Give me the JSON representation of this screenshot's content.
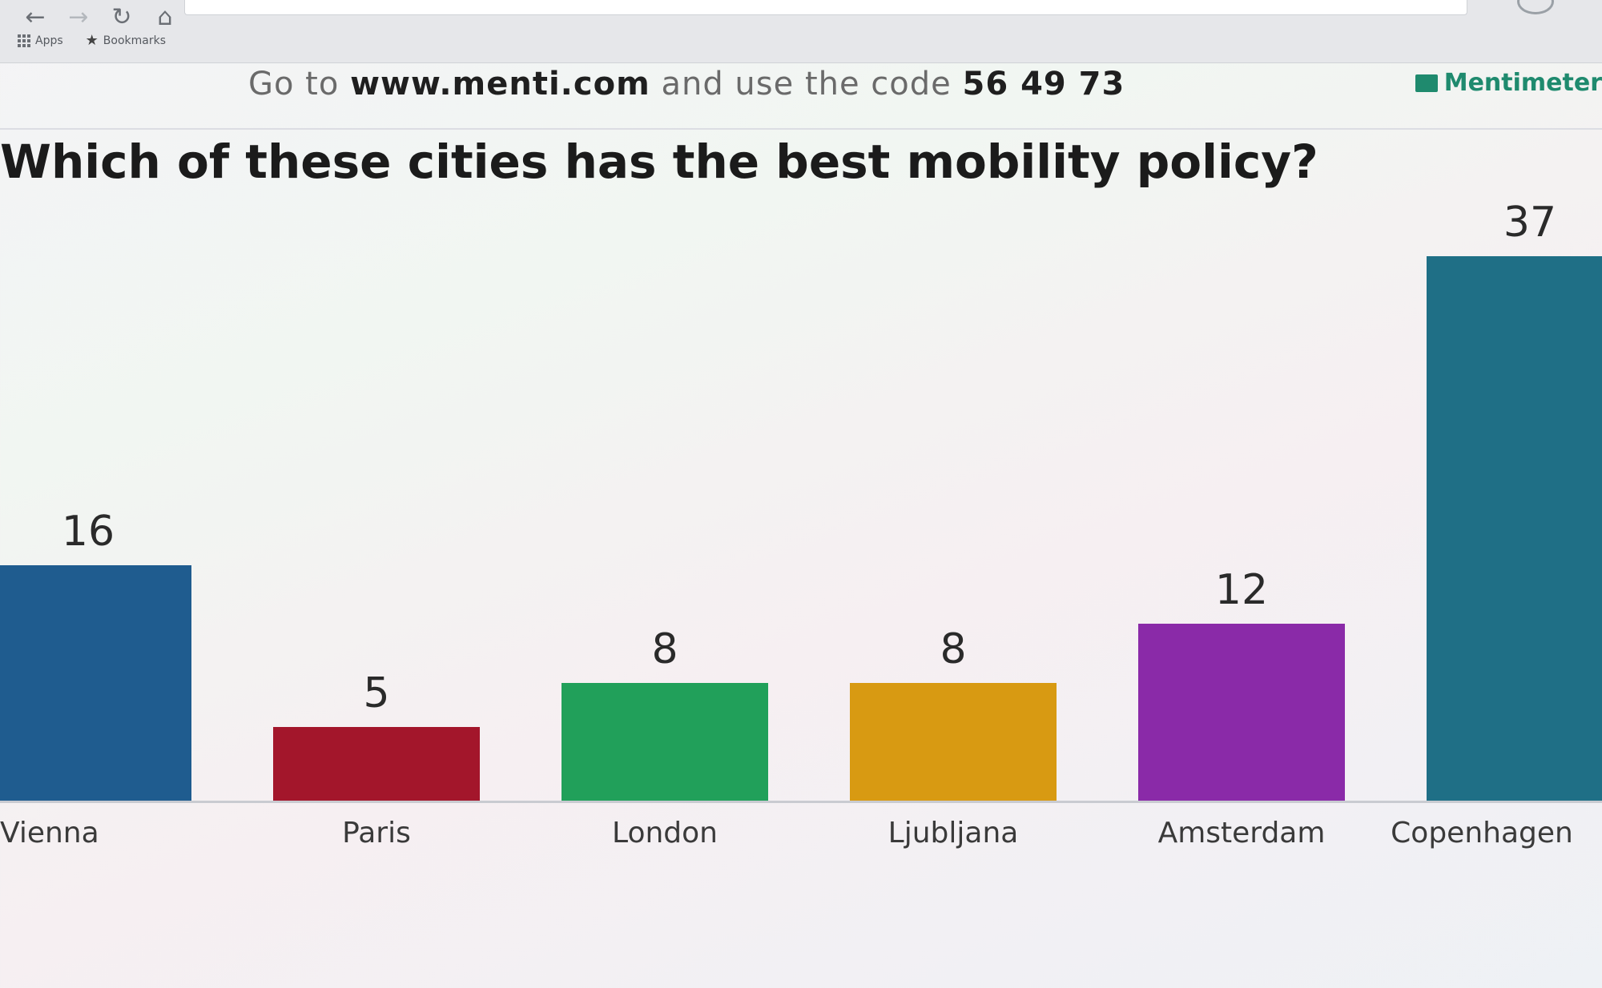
{
  "browser": {
    "nav_back": "←",
    "nav_forward": "→",
    "nav_reload": "↻",
    "nav_home": "⌂",
    "bookmarks_bar": {
      "apps_label": "Apps",
      "bookmarks_label": "Bookmarks"
    }
  },
  "slide": {
    "join_prefix": "Go to ",
    "join_url": "www.menti.com",
    "join_middle": " and use the code ",
    "join_code": "56 49 73",
    "brand": "Mentimeter",
    "question": "Which of these cities has the best mobility policy?"
  },
  "chart_data": {
    "type": "bar",
    "categories": [
      "Vienna",
      "Paris",
      "London",
      "Ljubljana",
      "Amsterdam",
      "Copenhagen"
    ],
    "values": [
      16,
      5,
      8,
      8,
      12,
      37
    ],
    "colors": [
      "#1f5c8f",
      "#a3162b",
      "#21a05a",
      "#d89a12",
      "#8a2aa8",
      "#1f6f86"
    ],
    "ylim": [
      0,
      37
    ],
    "title": "Which of these cities has the best mobility policy?",
    "xlabel": "",
    "ylabel": "",
    "grid": false
  }
}
